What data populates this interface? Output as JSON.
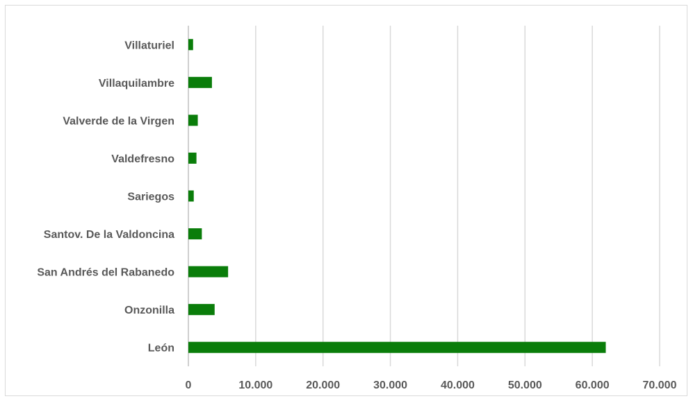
{
  "chart_data": {
    "type": "bar",
    "orientation": "horizontal",
    "categories": [
      "Villaturiel",
      "Villaquilambre",
      "Valverde de la Virgen",
      "Valdefresno",
      "Sariegos",
      "Santov. De la Valdoncina",
      "San Andrés del Rabanedo",
      "Onzonilla",
      "León"
    ],
    "values": [
      700,
      3500,
      1400,
      1200,
      800,
      2000,
      5900,
      3900,
      62000
    ],
    "xlim": [
      0,
      70000
    ],
    "xticks": [
      0,
      10000,
      20000,
      30000,
      40000,
      50000,
      60000,
      70000
    ],
    "xtick_labels": [
      "0",
      "10.000",
      "20.000",
      "30.000",
      "40.000",
      "50.000",
      "60.000",
      "70.000"
    ],
    "bar_color": "#0a7d0a",
    "grid": "vertical",
    "title": "",
    "xlabel": "",
    "ylabel": ""
  }
}
